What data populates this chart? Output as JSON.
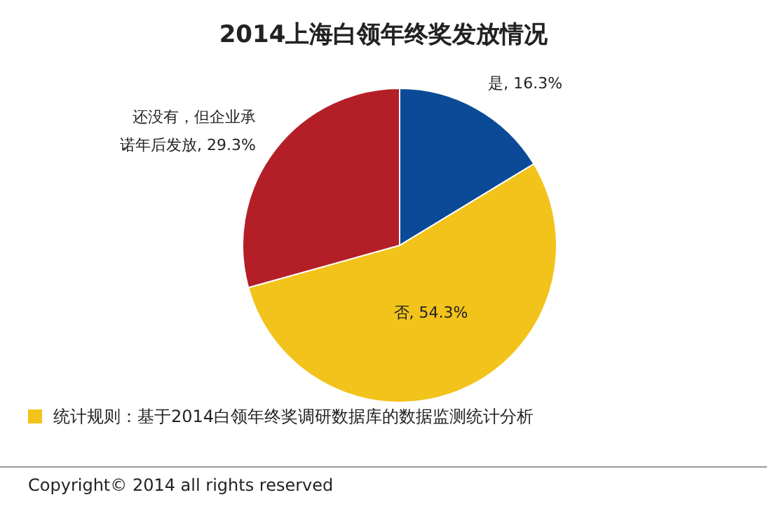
{
  "chart_data": {
    "type": "pie",
    "title": "2014上海白领年终奖发放情况",
    "categories": [
      "是",
      "否",
      "还没有，但企业承诺年后发放"
    ],
    "values": [
      16.3,
      54.3,
      29.3
    ],
    "colors": [
      "#0b4a97",
      "#f2c31b",
      "#b41f27"
    ],
    "value_labels": [
      ", 16.3%",
      ", 54.3%",
      ", 29.3%"
    ],
    "annotations": [
      "统计规则：基于2014白领年终奖调研数据库的数据监测统计分析",
      "Copyright© 2014 all rights reserved"
    ]
  }
}
